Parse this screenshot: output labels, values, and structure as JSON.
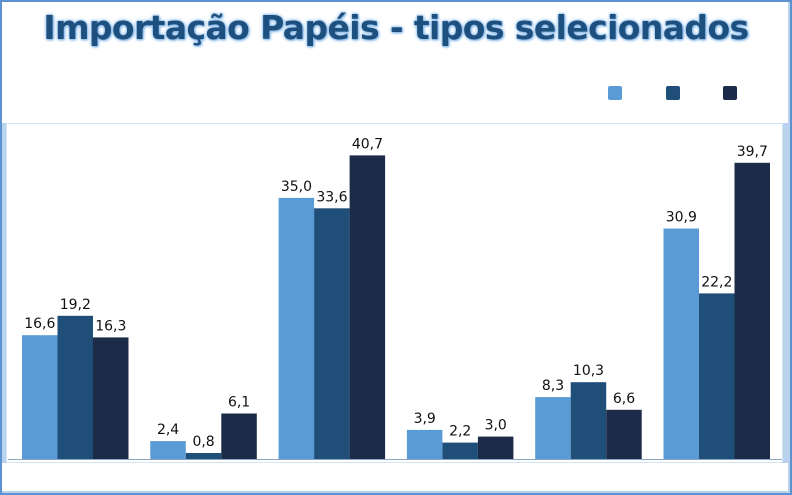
{
  "chart_data": {
    "type": "bar",
    "title": "Importação Papéis - tipos selecionados",
    "categories": [
      "",
      "",
      "",
      "",
      "",
      ""
    ],
    "series": [
      {
        "values": [
          16.6,
          2.4,
          35.0,
          3.9,
          8.3,
          30.9
        ],
        "labels": [
          "16,6",
          "2,4",
          "35,0",
          "3,9",
          "8,3",
          "30,9"
        ],
        "color": "#5b9bd5"
      },
      {
        "values": [
          19.2,
          0.8,
          33.6,
          2.2,
          10.3,
          22.2
        ],
        "labels": [
          "19,2",
          "0,8",
          "33,6",
          "2,2",
          "10,3",
          "22,2"
        ],
        "color": "#1f4e79"
      },
      {
        "values": [
          16.3,
          6.1,
          40.7,
          3.0,
          6.6,
          39.7
        ],
        "labels": [
          "16,3",
          "6,1",
          "40,7",
          "3,0",
          "6,6",
          "39,7"
        ],
        "color": "#1c2b47"
      }
    ],
    "ylim": [
      0,
      45
    ],
    "grid": false,
    "legend_position": "top-right"
  }
}
